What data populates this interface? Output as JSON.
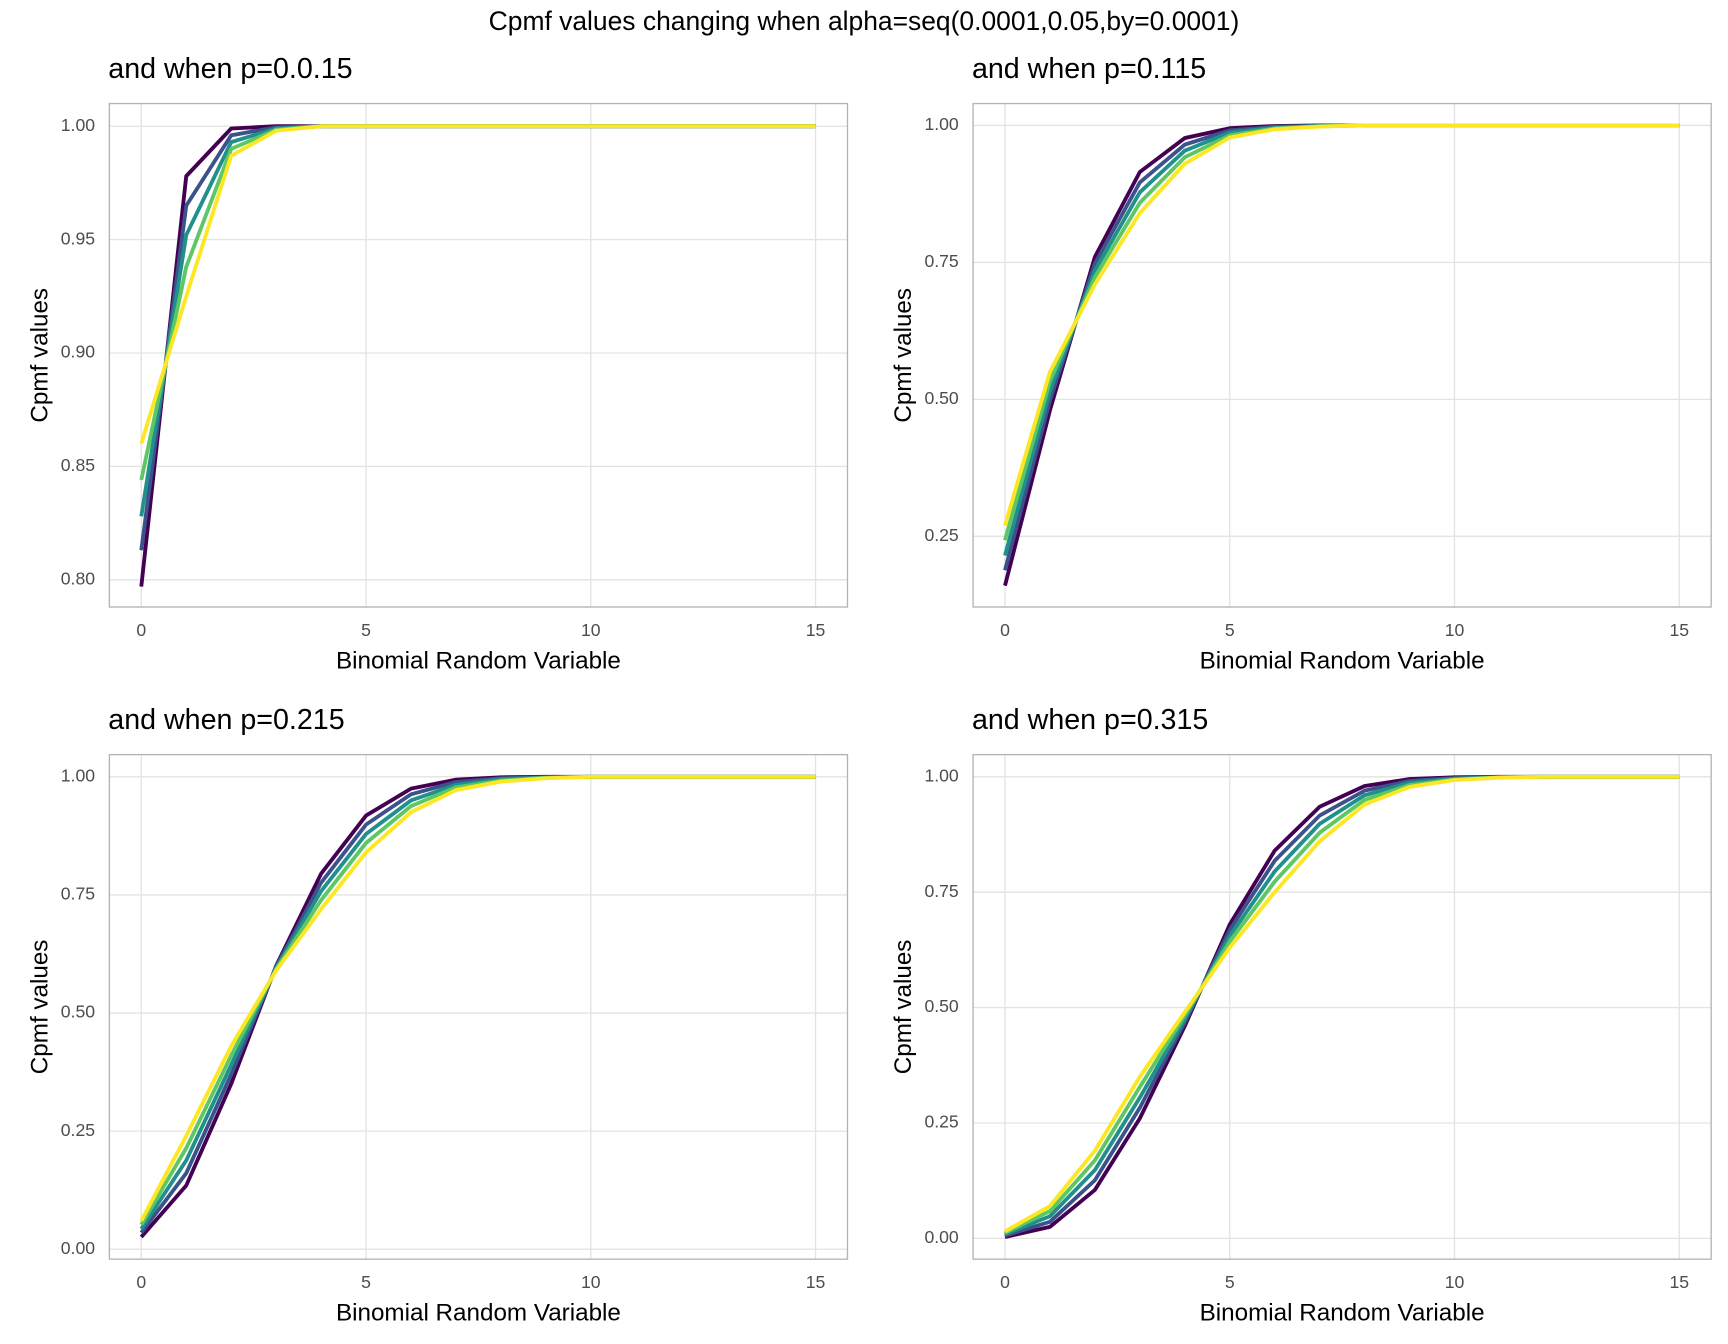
{
  "title": "Cpmf values changing when alpha=seq(0.0001,0.05,by=0.0001)",
  "chart_data": [
    {
      "type": "line",
      "title": "and when p=0.0.15",
      "xlabel": "Binomial Random Variable",
      "ylabel": "Cpmf values",
      "x": [
        0,
        1,
        2,
        3,
        4,
        5,
        6,
        7,
        8,
        9,
        10,
        11,
        12,
        13,
        14,
        15
      ],
      "xlim": [
        -0.71,
        15.71
      ],
      "xticks": [
        0,
        5,
        10,
        15
      ],
      "ylim": [
        0.788,
        1.01
      ],
      "yticks": [
        {
          "value": 0.8,
          "label": "0.80"
        },
        {
          "value": 0.85,
          "label": "0.85"
        },
        {
          "value": 0.9,
          "label": "0.90"
        },
        {
          "value": 0.95,
          "label": "0.95"
        },
        {
          "value": 1,
          "label": "1.00"
        }
      ],
      "series": [
        {
          "color": "#440154",
          "values": [
            0.797,
            0.978,
            0.999,
            1,
            1,
            1,
            1,
            1,
            1,
            1,
            1,
            1,
            1,
            1,
            1,
            1
          ]
        },
        {
          "color": "#3b528b",
          "values": [
            0.813,
            0.965,
            0.996,
            0.9995,
            1,
            1,
            1,
            1,
            1,
            1,
            1,
            1,
            1,
            1,
            1,
            1
          ]
        },
        {
          "color": "#21908c",
          "values": [
            0.828,
            0.952,
            0.993,
            0.999,
            1,
            1,
            1,
            1,
            1,
            1,
            1,
            1,
            1,
            1,
            1,
            1
          ]
        },
        {
          "color": "#5dc863",
          "values": [
            0.844,
            0.938,
            0.99,
            0.9985,
            1,
            1,
            1,
            1,
            1,
            1,
            1,
            1,
            1,
            1,
            1,
            1
          ]
        },
        {
          "color": "#fde725",
          "values": [
            0.86,
            0.925,
            0.987,
            0.998,
            1,
            1,
            1,
            1,
            1,
            1,
            1,
            1,
            1,
            1,
            1,
            1
          ]
        }
      ]
    },
    {
      "type": "line",
      "title": "and when p=0.115",
      "xlabel": "Binomial Random Variable",
      "ylabel": "Cpmf values",
      "x": [
        0,
        1,
        2,
        3,
        4,
        5,
        6,
        7,
        8,
        9,
        10,
        11,
        12,
        13,
        14,
        15
      ],
      "xlim": [
        -0.71,
        15.71
      ],
      "xticks": [
        0,
        5,
        10,
        15
      ],
      "ylim": [
        0.121,
        1.04
      ],
      "yticks": [
        {
          "value": 0.25,
          "label": "0.25"
        },
        {
          "value": 0.5,
          "label": "0.50"
        },
        {
          "value": 0.75,
          "label": "0.75"
        },
        {
          "value": 1,
          "label": "1.00"
        }
      ],
      "series": [
        {
          "color": "#440154",
          "values": [
            0.16,
            0.48,
            0.76,
            0.915,
            0.977,
            0.995,
            0.999,
            1,
            1,
            1,
            1,
            1,
            1,
            1,
            1,
            1
          ]
        },
        {
          "color": "#3b528b",
          "values": [
            0.188,
            0.498,
            0.748,
            0.896,
            0.965,
            0.991,
            0.9975,
            0.9995,
            1,
            1,
            1,
            1,
            1,
            1,
            1,
            1
          ]
        },
        {
          "color": "#21908c",
          "values": [
            0.215,
            0.515,
            0.735,
            0.878,
            0.954,
            0.987,
            0.996,
            0.999,
            1,
            1,
            1,
            1,
            1,
            1,
            1,
            1
          ]
        },
        {
          "color": "#5dc863",
          "values": [
            0.243,
            0.533,
            0.723,
            0.859,
            0.942,
            0.982,
            0.9945,
            0.9985,
            1,
            1,
            1,
            1,
            1,
            1,
            1,
            1
          ]
        },
        {
          "color": "#fde725",
          "values": [
            0.27,
            0.55,
            0.71,
            0.84,
            0.93,
            0.978,
            0.993,
            0.998,
            1,
            1,
            1,
            1,
            1,
            1,
            1,
            1
          ]
        }
      ]
    },
    {
      "type": "line",
      "title": "and when p=0.215",
      "xlabel": "Binomial Random Variable",
      "ylabel": "Cpmf values",
      "x": [
        0,
        1,
        2,
        3,
        4,
        5,
        6,
        7,
        8,
        9,
        10,
        11,
        12,
        13,
        14,
        15
      ],
      "xlim": [
        -0.71,
        15.71
      ],
      "xticks": [
        0,
        5,
        10,
        15
      ],
      "ylim": [
        -0.021,
        1.047
      ],
      "yticks": [
        {
          "value": 0,
          "label": "0.00"
        },
        {
          "value": 0.25,
          "label": "0.25"
        },
        {
          "value": 0.5,
          "label": "0.50"
        },
        {
          "value": 0.75,
          "label": "0.75"
        },
        {
          "value": 1,
          "label": "1.00"
        }
      ],
      "series": [
        {
          "color": "#440154",
          "values": [
            0.026,
            0.135,
            0.35,
            0.6,
            0.795,
            0.918,
            0.975,
            0.994,
            0.999,
            1,
            1,
            1,
            1,
            1,
            1,
            1
          ]
        },
        {
          "color": "#3b528b",
          "values": [
            0.035,
            0.161,
            0.37,
            0.598,
            0.776,
            0.899,
            0.963,
            0.989,
            0.997,
            0.999,
            1,
            1,
            1,
            1,
            1,
            1
          ]
        },
        {
          "color": "#21908c",
          "values": [
            0.043,
            0.188,
            0.39,
            0.595,
            0.758,
            0.879,
            0.95,
            0.983,
            0.995,
            0.9985,
            1,
            1,
            1,
            1,
            1,
            1
          ]
        },
        {
          "color": "#5dc863",
          "values": [
            0.052,
            0.214,
            0.41,
            0.593,
            0.739,
            0.86,
            0.938,
            0.978,
            0.992,
            0.998,
            1,
            1,
            1,
            1,
            1,
            1
          ]
        },
        {
          "color": "#fde725",
          "values": [
            0.06,
            0.24,
            0.43,
            0.59,
            0.72,
            0.84,
            0.925,
            0.972,
            0.99,
            0.997,
            1,
            1,
            1,
            1,
            1,
            1
          ]
        }
      ]
    },
    {
      "type": "line",
      "title": "and when p=0.315",
      "xlabel": "Binomial Random Variable",
      "ylabel": "Cpmf values",
      "x": [
        0,
        1,
        2,
        3,
        4,
        5,
        6,
        7,
        8,
        9,
        10,
        11,
        12,
        13,
        14,
        15
      ],
      "xlim": [
        -0.71,
        15.71
      ],
      "xticks": [
        0,
        5,
        10,
        15
      ],
      "ylim": [
        -0.045,
        1.048
      ],
      "yticks": [
        {
          "value": 0,
          "label": "0.00"
        },
        {
          "value": 0.25,
          "label": "0.25"
        },
        {
          "value": 0.5,
          "label": "0.50"
        },
        {
          "value": 0.75,
          "label": "0.75"
        },
        {
          "value": 1,
          "label": "1.00"
        }
      ],
      "series": [
        {
          "color": "#440154",
          "values": [
            0.003,
            0.025,
            0.105,
            0.26,
            0.46,
            0.68,
            0.84,
            0.935,
            0.98,
            0.995,
            0.999,
            1,
            1,
            1,
            1,
            1
          ]
        },
        {
          "color": "#3b528b",
          "values": [
            0.006,
            0.036,
            0.126,
            0.283,
            0.468,
            0.668,
            0.818,
            0.916,
            0.97,
            0.991,
            0.997,
            0.9995,
            1,
            1,
            1,
            1
          ]
        },
        {
          "color": "#21908c",
          "values": [
            0.009,
            0.048,
            0.148,
            0.305,
            0.475,
            0.655,
            0.795,
            0.898,
            0.96,
            0.987,
            0.996,
            0.999,
            1,
            1,
            1,
            1
          ]
        },
        {
          "color": "#5dc863",
          "values": [
            0.012,
            0.059,
            0.169,
            0.328,
            0.483,
            0.643,
            0.773,
            0.879,
            0.95,
            0.982,
            0.994,
            0.9985,
            1,
            1,
            1,
            1
          ]
        },
        {
          "color": "#fde725",
          "values": [
            0.015,
            0.07,
            0.19,
            0.35,
            0.49,
            0.63,
            0.75,
            0.86,
            0.94,
            0.978,
            0.993,
            0.998,
            1,
            1,
            1,
            1
          ]
        }
      ]
    }
  ]
}
